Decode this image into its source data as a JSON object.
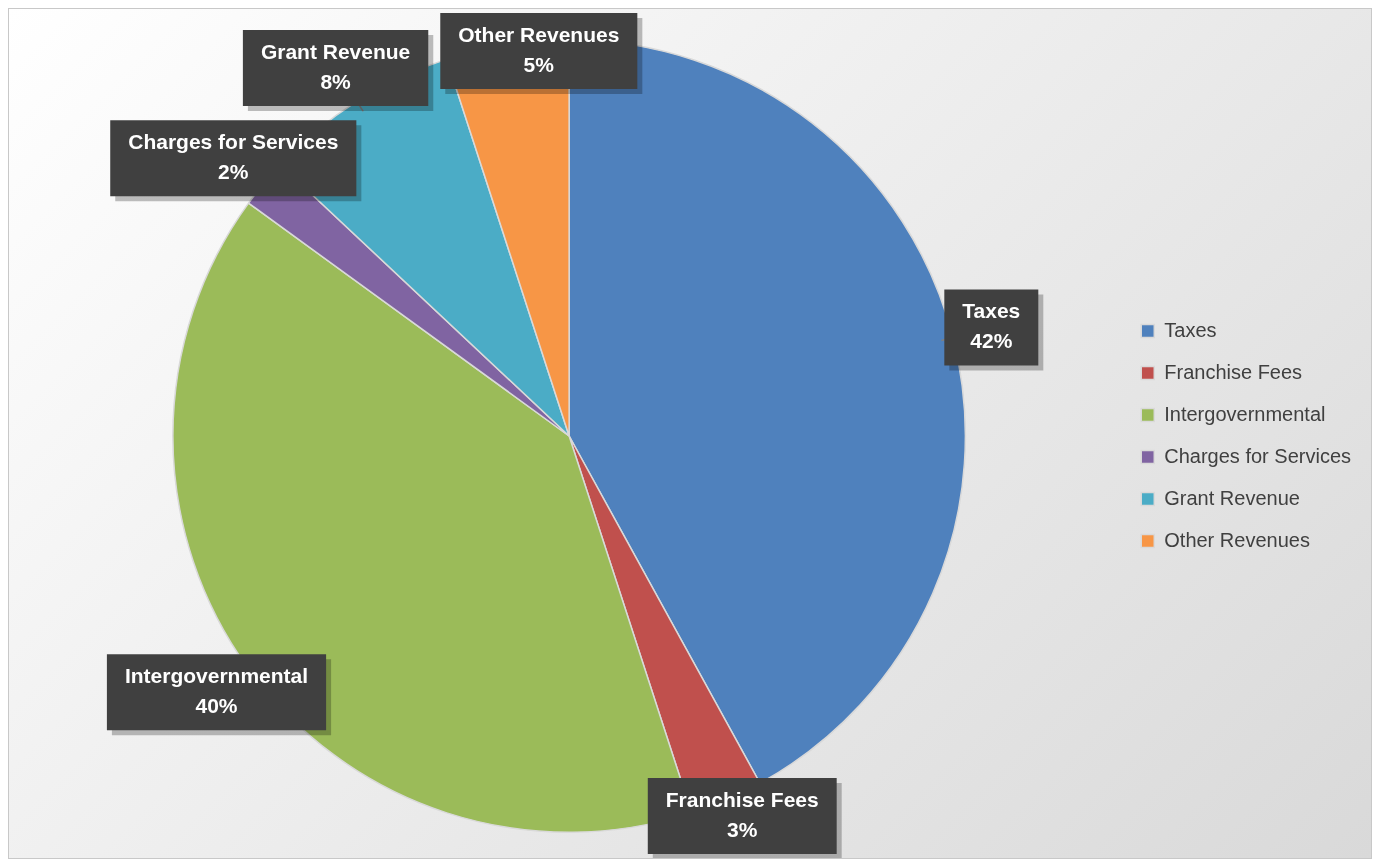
{
  "chart_data": {
    "type": "pie",
    "categories": [
      "Taxes",
      "Franchise Fees",
      "Intergovernmental",
      "Charges for Services",
      "Grant Revenue",
      "Other Revenues"
    ],
    "values": [
      42,
      3,
      40,
      2,
      8,
      5
    ],
    "colors": [
      "#4f81bd",
      "#c0504d",
      "#9bbb59",
      "#8064a2",
      "#4bacc6",
      "#f79646"
    ],
    "value_labels": [
      "42%",
      "3%",
      "40%",
      "2%",
      "8%",
      "5%"
    ],
    "legend": "right"
  }
}
